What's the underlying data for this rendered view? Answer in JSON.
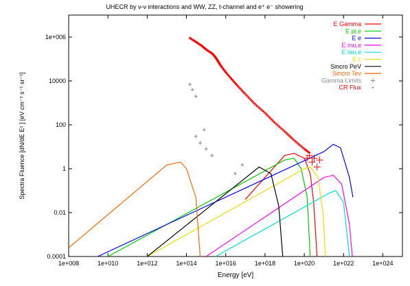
{
  "chart_data": {
    "type": "line",
    "title": "UHECR by ν-ν interactions and WW, ZZ, t-channel and e⁺ e⁻ showering",
    "xlabel": "Energy [eV]",
    "ylabel": "Spectra Fluence [dN/dE E² ] [eV cm⁻² s⁻¹ sr⁻¹]",
    "x_scale": "log",
    "y_scale": "log",
    "xlim": [
      100000000.0,
      1e+25
    ],
    "ylim": [
      0.0001,
      10000000
    ],
    "x_ticks": [
      "1e+008",
      "1e+010",
      "1e+012",
      "1e+014",
      "1e+016",
      "1e+018",
      "1e+020",
      "1e+022",
      "1e+024"
    ],
    "y_ticks": [
      "0.0001",
      "0.01",
      "1",
      "100",
      "10000",
      "1e+006"
    ],
    "legend_position": "top-right",
    "grid": false,
    "series": [
      {
        "name": "E Gamma",
        "color": "#ff0000",
        "style": "line",
        "points": [
          [
            1e+17,
            0.04
          ],
          [
            1e+19,
            4
          ],
          [
            3e+19,
            5
          ],
          [
            1e+20,
            3
          ],
          [
            2e+20,
            0.6
          ],
          [
            3e+20,
            0.03
          ],
          [
            4.5e+20,
            0.0001
          ]
        ]
      },
      {
        "name": "E pi,e",
        "color": "#00cc00",
        "style": "line",
        "points": [
          [
            10000000000.0,
            0.0001
          ],
          [
            1e+19,
            2.5
          ],
          [
            3e+19,
            3
          ],
          [
            7e+19,
            1
          ],
          [
            1.4e+20,
            0.05
          ],
          [
            2e+20,
            0.0001
          ]
        ]
      },
      {
        "name": "E e",
        "color": "#0000ff",
        "style": "line",
        "points": [
          [
            3000000000.0,
            0.0001
          ],
          [
            1e+21,
            6
          ],
          [
            3e+21,
            13
          ],
          [
            7e+21,
            9
          ],
          [
            2e+22,
            0.4
          ],
          [
            3e+22,
            0.05
          ]
        ]
      },
      {
        "name": "E mu,e",
        "color": "#ff00ff",
        "style": "line",
        "points": [
          [
            1000000000000000.0,
            0.0001
          ],
          [
            1e+21,
            0.4
          ],
          [
            3e+21,
            0.5
          ],
          [
            8e+21,
            0.2
          ],
          [
            2e+22,
            0.003
          ],
          [
            2.8e+22,
            0.0001
          ]
        ]
      },
      {
        "name": "E tau,e",
        "color": "#00dddd",
        "style": "line",
        "points": [
          [
            3000000000000000.0,
            0.0001
          ],
          [
            2e+21,
            0.08
          ],
          [
            4e+21,
            0.1
          ],
          [
            1e+22,
            0.03
          ],
          [
            2e+22,
            0.0001
          ]
        ]
      },
      {
        "name": "E c",
        "color": "#eedd00",
        "style": "line",
        "points": [
          [
            1000000000000.0,
            0.0001
          ],
          [
            1e+20,
            1
          ],
          [
            2e+20,
            1.2
          ],
          [
            5e+20,
            0.4
          ],
          [
            9e+20,
            0.01
          ],
          [
            1.2e+21,
            0.0001
          ]
        ]
      },
      {
        "name": "Sincro PeV",
        "color": "#000000",
        "style": "line",
        "points": [
          [
            1000000000000.0,
            0.0001
          ],
          [
            5e+17,
            1.2
          ],
          [
            2e+18,
            0.6
          ],
          [
            5e+18,
            0.02
          ],
          [
            8e+18,
            0.0001
          ]
        ]
      },
      {
        "name": "Sincro Tev",
        "color": "#ff6600",
        "style": "line",
        "points": [
          [
            100000000.0,
            0.00025
          ],
          [
            10000000000000.0,
            1.5
          ],
          [
            50000000000000.0,
            2
          ],
          [
            100000000000000.0,
            1
          ],
          [
            300000000000000.0,
            0.05
          ],
          [
            500000000000000.0,
            0.0001
          ]
        ]
      },
      {
        "name": "Gamma Limits",
        "color": "#888888",
        "style": "plus",
        "points": [
          [
            150000000000000.0,
            7000
          ],
          [
            200000000000000.0,
            4000
          ],
          [
            300000000000000.0,
            2000
          ],
          [
            300000000000000.0,
            30
          ],
          [
            500000000000000.0,
            15
          ],
          [
            800000000000000.0,
            60
          ],
          [
            1000000000000000.0,
            8
          ],
          [
            2000000000000000.0,
            4
          ],
          [
            3e+16,
            0.6
          ],
          [
            7e+16,
            1.5
          ]
        ]
      },
      {
        "name": "CR Flux",
        "color": "#ff0000",
        "style": "dot",
        "points": [
          [
            150000000000000.0,
            900000
          ],
          [
            300000000000000.0,
            600000
          ],
          [
            600000000000000.0,
            400000
          ],
          [
            1000000000000000.0,
            270000
          ],
          [
            2000000000000000.0,
            180000
          ],
          [
            3000000000000000.0,
            120000
          ],
          [
            4000000000000000.0,
            80000
          ],
          [
            6000000000000000.0,
            45000
          ],
          [
            1e+16,
            25000
          ],
          [
            2e+16,
            12000
          ],
          [
            4e+16,
            6000
          ],
          [
            1e+17,
            2500
          ],
          [
            3e+17,
            900
          ],
          [
            1e+18,
            350
          ],
          [
            3e+18,
            130
          ],
          [
            1e+19,
            50
          ],
          [
            3e+19,
            20
          ],
          [
            1e+20,
            8
          ],
          [
            2e+20,
            5
          ]
        ]
      },
      {
        "name": "CR Flux markers",
        "color": "#ff0000",
        "style": "bigplus",
        "points": [
          [
            1.4e+20,
            3
          ],
          [
            1.8e+20,
            4
          ],
          [
            2.5e+20,
            2
          ],
          [
            3.2e+20,
            3
          ],
          [
            4.5e+20,
            1.2
          ],
          [
            6e+20,
            2.5
          ]
        ]
      }
    ]
  }
}
